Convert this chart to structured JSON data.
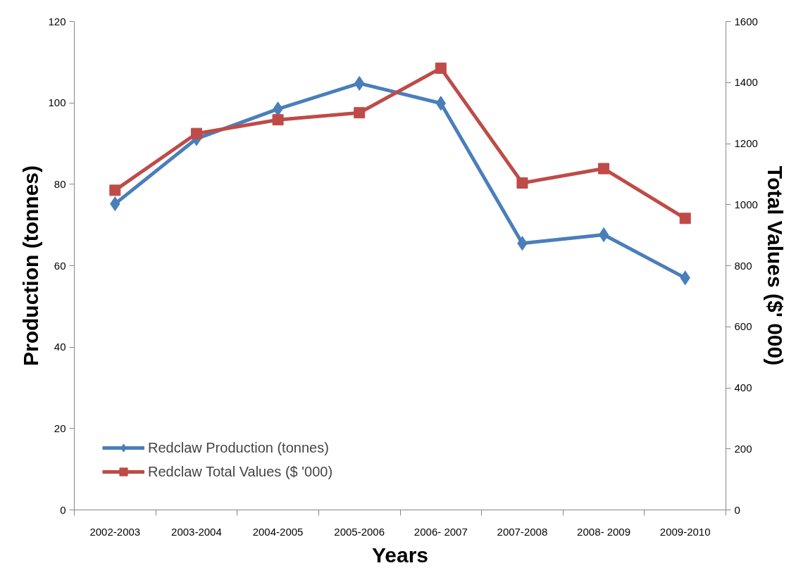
{
  "chart_data": {
    "type": "line",
    "xlabel": "Years",
    "ylabel": "Production (tonnes)",
    "y2label": "Total Values ($' 000)",
    "categories": [
      "2002-2003",
      "2003-2004",
      "2004-2005",
      "2005-2006",
      "2006- 2007",
      "2007-2008",
      "2008- 2009",
      "2009-2010"
    ],
    "series": [
      {
        "name": "Redclaw Production (tonnes)",
        "color": "#4a7ebb",
        "marker": "diamond",
        "values": [
          75.2,
          91.2,
          98.5,
          104.8,
          99.9,
          65.5,
          67.6,
          57.0
        ]
      },
      {
        "name": "Redclaw Total Values ($ '000)",
        "color": "#be4b48",
        "marker": "square",
        "axis": "y2",
        "values": [
          1047,
          1233,
          1278,
          1301,
          1447,
          1071,
          1118,
          955
        ]
      }
    ],
    "ylim": [
      0,
      120
    ],
    "yticks": [
      0,
      20,
      40,
      60,
      80,
      100,
      120
    ],
    "y2lim": [
      0,
      1600
    ],
    "y2ticks": [
      0,
      200,
      400,
      600,
      800,
      1000,
      1200,
      1400,
      1600
    ],
    "grid": false,
    "legend": "bottom left",
    "line_style": "solid"
  }
}
